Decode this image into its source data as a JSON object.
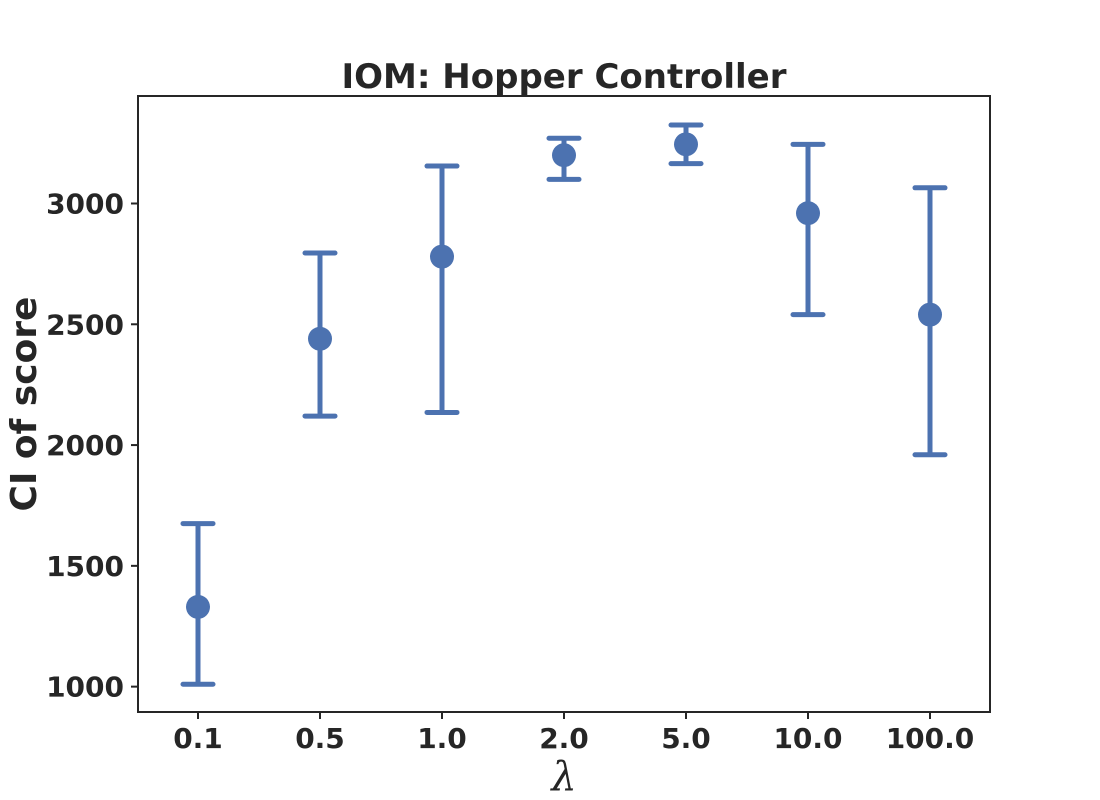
{
  "chart_data": {
    "type": "scatter",
    "title": "IOM: Hopper Controller",
    "xlabel": "λ",
    "ylabel": "CI of score",
    "categories": [
      "0.1",
      "0.5",
      "1.0",
      "2.0",
      "5.0",
      "10.0",
      "100.0"
    ],
    "series": [
      {
        "values": [
          1330,
          2440,
          2780,
          3200,
          3245,
          2960,
          2540
        ],
        "lower": [
          1010,
          2120,
          2135,
          3100,
          3165,
          2540,
          1960
        ],
        "upper": [
          1675,
          2795,
          3155,
          3270,
          3325,
          3245,
          3065
        ]
      }
    ],
    "yticks": [
      1000,
      1500,
      2000,
      2500,
      3000
    ],
    "ylim": [
      895,
      3445
    ],
    "grid": false,
    "color": "#4c72b0"
  }
}
